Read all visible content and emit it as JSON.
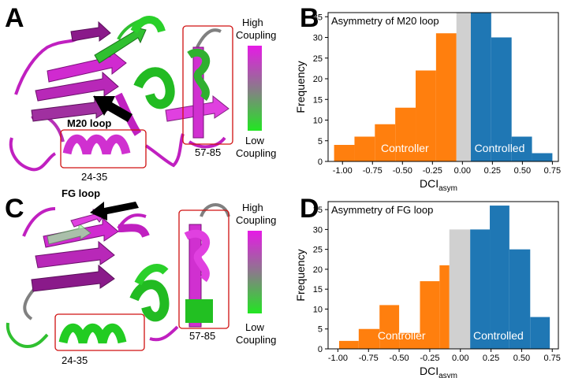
{
  "panels": {
    "A": {
      "letter": "A",
      "loop_label": "M20 loop",
      "region_left": "24-35",
      "region_right": "57-85"
    },
    "C": {
      "letter": "C",
      "loop_label": "FG loop",
      "region_left": "24-35",
      "region_right": "57-85"
    }
  },
  "colorbar": {
    "high_line1": "High",
    "high_line2": "Coupling",
    "low_line1": "Low",
    "low_line2": "Coupling",
    "high_color": "#e61ae6",
    "low_color": "#22e622"
  },
  "chart_data": [
    {
      "letter": "B",
      "type": "bar",
      "title": "Asymmetry of M20 loop",
      "xlabel_main": "DCI",
      "xlabel_sub": "asym",
      "ylabel": "Frequency",
      "xlim": [
        -1.12,
        0.8
      ],
      "ylim": [
        0,
        36
      ],
      "xticks": [
        "-1.00",
        "-0.75",
        "-0.50",
        "-0.25",
        "0.00",
        "0.25",
        "0.50",
        "0.75"
      ],
      "xtick_values": [
        -1.0,
        -0.75,
        -0.5,
        -0.25,
        0.0,
        0.25,
        0.5,
        0.75
      ],
      "yticks": [
        "0",
        "5",
        "10",
        "15",
        "20",
        "25",
        "30",
        "35"
      ],
      "ytick_values": [
        0,
        5,
        10,
        15,
        20,
        25,
        30,
        35
      ],
      "bin_edges": [
        -1.07,
        -0.9,
        -0.73,
        -0.56,
        -0.39,
        -0.22,
        -0.05,
        0.07,
        0.24,
        0.41,
        0.58,
        0.75
      ],
      "counts": [
        4,
        6,
        9,
        13,
        22,
        31,
        36,
        36,
        30,
        6,
        2
      ],
      "bar_groups": [
        "controller",
        "controller",
        "controller",
        "controller",
        "controller",
        "controller",
        "neutral",
        "controlled",
        "controlled",
        "controlled",
        "controlled"
      ],
      "colors": {
        "controller": "#ff7f0e",
        "neutral": "#d0d0d0",
        "controlled": "#1f77b4"
      },
      "annotations": {
        "controller": "Controller",
        "controlled": "Controlled"
      }
    },
    {
      "letter": "D",
      "type": "bar",
      "title": "Asymmetry of FG loop",
      "xlabel_main": "DCI",
      "xlabel_sub": "asym",
      "ylabel": "Frequency",
      "xlim": [
        -1.08,
        0.8
      ],
      "ylim": [
        0,
        37
      ],
      "xticks": [
        "-1.00",
        "-0.75",
        "-0.50",
        "-0.25",
        "0.00",
        "0.25",
        "0.50",
        "0.75"
      ],
      "xtick_values": [
        -1.0,
        -0.75,
        -0.5,
        -0.25,
        0.0,
        0.25,
        0.5,
        0.75
      ],
      "yticks": [
        "0",
        "5",
        "10",
        "15",
        "20",
        "25",
        "30",
        "35"
      ],
      "ytick_values": [
        0,
        5,
        10,
        15,
        20,
        25,
        30,
        35
      ],
      "bin_edges": [
        -0.99,
        -0.83,
        -0.66,
        -0.5,
        -0.33,
        -0.17,
        -0.09,
        0.08,
        0.24,
        0.4,
        0.57,
        0.73
      ],
      "counts": [
        2,
        5,
        11,
        4,
        17,
        21,
        30,
        30,
        36,
        25,
        8
      ],
      "bar_groups": [
        "controller",
        "controller",
        "controller",
        "controller",
        "controller",
        "controller",
        "neutral",
        "controlled",
        "controlled",
        "controlled",
        "controlled"
      ],
      "colors": {
        "controller": "#ff7f0e",
        "neutral": "#d0d0d0",
        "controlled": "#1f77b4"
      },
      "annotations": {
        "controller": "Controller",
        "controlled": "Controlled"
      }
    }
  ]
}
